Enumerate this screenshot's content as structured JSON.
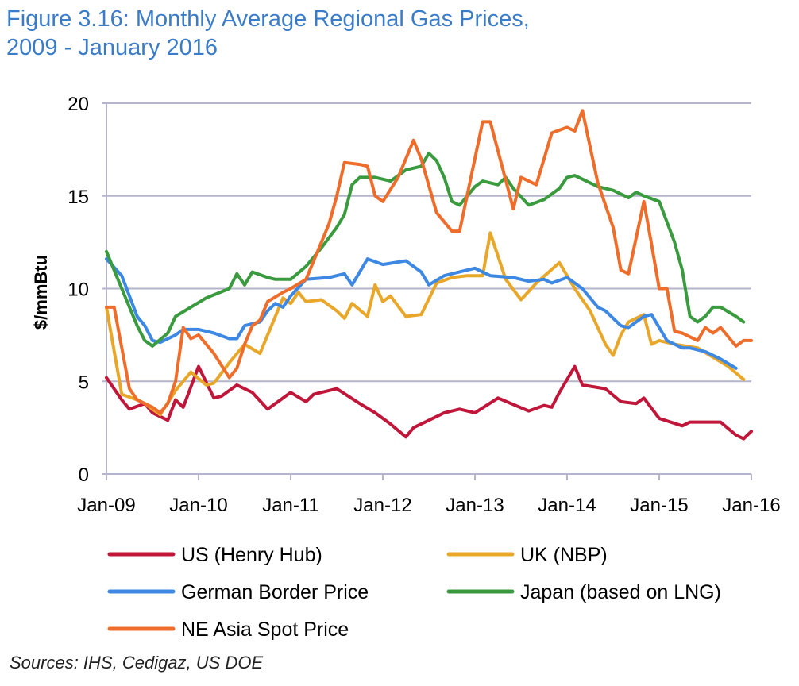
{
  "chart_data": {
    "type": "line",
    "title_line1": "Figure 3.16: Monthly Average Regional Gas Prices,",
    "title_line2": "2009 - January 2016",
    "xlabel": "",
    "ylabel": "$/mmBtu",
    "ylim": [
      0,
      20
    ],
    "yticks": [
      "0",
      "5",
      "10",
      "15",
      "20"
    ],
    "xticks": [
      "Jan-09",
      "Jan-10",
      "Jan-11",
      "Jan-12",
      "Jan-13",
      "Jan-14",
      "Jan-15",
      "Jan-16"
    ],
    "xrange": [
      "2009-01",
      "2016-01"
    ],
    "grid": "horizontal",
    "legend_placement": "bottom",
    "source": "Sources: IHS, Cedigaz, US DOE",
    "series": [
      {
        "name": "US (Henry Hub)",
        "color": "#c0163a",
        "points": [
          [
            "2009-01",
            5.2
          ],
          [
            "2009-03",
            4.0
          ],
          [
            "2009-04",
            3.5
          ],
          [
            "2009-06",
            3.8
          ],
          [
            "2009-07",
            3.3
          ],
          [
            "2009-09",
            2.9
          ],
          [
            "2009-10",
            4.0
          ],
          [
            "2009-11",
            3.6
          ],
          [
            "2010-01",
            5.8
          ],
          [
            "2010-03",
            4.1
          ],
          [
            "2010-04",
            4.2
          ],
          [
            "2010-06",
            4.8
          ],
          [
            "2010-08",
            4.4
          ],
          [
            "2010-10",
            3.5
          ],
          [
            "2010-11",
            3.8
          ],
          [
            "2011-01",
            4.4
          ],
          [
            "2011-03",
            3.9
          ],
          [
            "2011-04",
            4.3
          ],
          [
            "2011-07",
            4.6
          ],
          [
            "2011-10",
            3.8
          ],
          [
            "2011-12",
            3.3
          ],
          [
            "2012-02",
            2.7
          ],
          [
            "2012-04",
            2.0
          ],
          [
            "2012-05",
            2.5
          ],
          [
            "2012-07",
            2.9
          ],
          [
            "2012-09",
            3.3
          ],
          [
            "2012-11",
            3.5
          ],
          [
            "2013-01",
            3.3
          ],
          [
            "2013-04",
            4.1
          ],
          [
            "2013-08",
            3.4
          ],
          [
            "2013-10",
            3.7
          ],
          [
            "2013-11",
            3.6
          ],
          [
            "2013-12",
            4.4
          ],
          [
            "2014-02",
            5.8
          ],
          [
            "2014-03",
            4.8
          ],
          [
            "2014-06",
            4.6
          ],
          [
            "2014-08",
            3.9
          ],
          [
            "2014-10",
            3.8
          ],
          [
            "2014-11",
            4.1
          ],
          [
            "2015-01",
            3.0
          ],
          [
            "2015-04",
            2.6
          ],
          [
            "2015-05",
            2.8
          ],
          [
            "2015-09",
            2.8
          ],
          [
            "2015-11",
            2.1
          ],
          [
            "2015-12",
            1.9
          ],
          [
            "2016-01",
            2.3
          ]
        ]
      },
      {
        "name": "UK (NBP)",
        "color": "#e9a72a",
        "points": [
          [
            "2009-01",
            9.0
          ],
          [
            "2009-03",
            4.3
          ],
          [
            "2009-05",
            4.0
          ],
          [
            "2009-06",
            3.8
          ],
          [
            "2009-08",
            3.2
          ],
          [
            "2009-10",
            4.5
          ],
          [
            "2009-12",
            5.5
          ],
          [
            "2010-02",
            4.8
          ],
          [
            "2010-03",
            4.9
          ],
          [
            "2010-05",
            6.0
          ],
          [
            "2010-07",
            7.0
          ],
          [
            "2010-09",
            6.5
          ],
          [
            "2010-11",
            8.5
          ],
          [
            "2010-12",
            9.5
          ],
          [
            "2011-01",
            9.2
          ],
          [
            "2011-02",
            9.8
          ],
          [
            "2011-03",
            9.3
          ],
          [
            "2011-05",
            9.4
          ],
          [
            "2011-07",
            8.8
          ],
          [
            "2011-08",
            8.4
          ],
          [
            "2011-09",
            9.2
          ],
          [
            "2011-11",
            8.5
          ],
          [
            "2011-12",
            10.2
          ],
          [
            "2012-01",
            9.3
          ],
          [
            "2012-02",
            9.6
          ],
          [
            "2012-04",
            8.5
          ],
          [
            "2012-06",
            8.6
          ],
          [
            "2012-08",
            10.3
          ],
          [
            "2012-10",
            10.6
          ],
          [
            "2012-12",
            10.7
          ],
          [
            "2013-02",
            10.7
          ],
          [
            "2013-03",
            13.0
          ],
          [
            "2013-05",
            10.5
          ],
          [
            "2013-07",
            9.4
          ],
          [
            "2013-09",
            10.3
          ],
          [
            "2013-12",
            11.4
          ],
          [
            "2014-02",
            10.0
          ],
          [
            "2014-04",
            8.8
          ],
          [
            "2014-06",
            7.0
          ],
          [
            "2014-07",
            6.4
          ],
          [
            "2014-08",
            7.5
          ],
          [
            "2014-09",
            8.2
          ],
          [
            "2014-11",
            8.6
          ],
          [
            "2014-12",
            7.0
          ],
          [
            "2015-01",
            7.2
          ],
          [
            "2015-03",
            7.0
          ],
          [
            "2015-06",
            6.8
          ],
          [
            "2015-08",
            6.3
          ],
          [
            "2015-10",
            5.8
          ],
          [
            "2015-12",
            5.1
          ]
        ]
      },
      {
        "name": "German Border Price",
        "color": "#3d88e2",
        "points": [
          [
            "2009-01",
            11.6
          ],
          [
            "2009-03",
            10.7
          ],
          [
            "2009-05",
            8.5
          ],
          [
            "2009-06",
            8.0
          ],
          [
            "2009-07",
            7.2
          ],
          [
            "2009-08",
            7.1
          ],
          [
            "2009-10",
            7.5
          ],
          [
            "2009-11",
            7.8
          ],
          [
            "2010-01",
            7.8
          ],
          [
            "2010-03",
            7.6
          ],
          [
            "2010-05",
            7.3
          ],
          [
            "2010-06",
            7.3
          ],
          [
            "2010-07",
            8.0
          ],
          [
            "2010-09",
            8.2
          ],
          [
            "2010-10",
            8.8
          ],
          [
            "2010-11",
            9.2
          ],
          [
            "2010-12",
            9.0
          ],
          [
            "2011-01",
            9.6
          ],
          [
            "2011-03",
            10.5
          ],
          [
            "2011-06",
            10.6
          ],
          [
            "2011-08",
            10.8
          ],
          [
            "2011-09",
            10.2
          ],
          [
            "2011-11",
            11.6
          ],
          [
            "2012-01",
            11.3
          ],
          [
            "2012-04",
            11.5
          ],
          [
            "2012-06",
            10.9
          ],
          [
            "2012-07",
            10.2
          ],
          [
            "2012-09",
            10.7
          ],
          [
            "2012-12",
            11.0
          ],
          [
            "2013-01",
            11.1
          ],
          [
            "2013-03",
            10.7
          ],
          [
            "2013-06",
            10.6
          ],
          [
            "2013-08",
            10.4
          ],
          [
            "2013-10",
            10.5
          ],
          [
            "2013-11",
            10.3
          ],
          [
            "2014-01",
            10.6
          ],
          [
            "2014-03",
            10.0
          ],
          [
            "2014-05",
            9.0
          ],
          [
            "2014-06",
            8.8
          ],
          [
            "2014-08",
            8.0
          ],
          [
            "2014-09",
            7.9
          ],
          [
            "2014-11",
            8.5
          ],
          [
            "2014-12",
            8.6
          ],
          [
            "2015-02",
            7.2
          ],
          [
            "2015-04",
            6.8
          ],
          [
            "2015-05",
            6.8
          ],
          [
            "2015-07",
            6.6
          ],
          [
            "2015-09",
            6.2
          ],
          [
            "2015-11",
            5.7
          ]
        ]
      },
      {
        "name": "Japan (based on LNG)",
        "color": "#3a9b3e",
        "points": [
          [
            "2009-01",
            12.0
          ],
          [
            "2009-03",
            10.0
          ],
          [
            "2009-05",
            8.0
          ],
          [
            "2009-06",
            7.2
          ],
          [
            "2009-07",
            6.9
          ],
          [
            "2009-09",
            7.6
          ],
          [
            "2009-10",
            8.5
          ],
          [
            "2009-12",
            9.0
          ],
          [
            "2010-02",
            9.5
          ],
          [
            "2010-05",
            10.0
          ],
          [
            "2010-06",
            10.8
          ],
          [
            "2010-07",
            10.2
          ],
          [
            "2010-08",
            10.9
          ],
          [
            "2010-10",
            10.6
          ],
          [
            "2010-11",
            10.5
          ],
          [
            "2011-01",
            10.5
          ],
          [
            "2011-03",
            11.2
          ],
          [
            "2011-05",
            12.2
          ],
          [
            "2011-07",
            13.3
          ],
          [
            "2011-08",
            14.0
          ],
          [
            "2011-09",
            15.6
          ],
          [
            "2011-10",
            16.0
          ],
          [
            "2011-12",
            16.0
          ],
          [
            "2012-02",
            15.8
          ],
          [
            "2012-04",
            16.4
          ],
          [
            "2012-06",
            16.6
          ],
          [
            "2012-07",
            17.3
          ],
          [
            "2012-08",
            16.9
          ],
          [
            "2012-09",
            16.0
          ],
          [
            "2012-10",
            14.7
          ],
          [
            "2012-11",
            14.5
          ],
          [
            "2013-01",
            15.5
          ],
          [
            "2013-02",
            15.8
          ],
          [
            "2013-04",
            15.6
          ],
          [
            "2013-05",
            16.0
          ],
          [
            "2013-06",
            15.4
          ],
          [
            "2013-08",
            14.5
          ],
          [
            "2013-10",
            14.8
          ],
          [
            "2013-12",
            15.4
          ],
          [
            "2014-01",
            16.0
          ],
          [
            "2014-02",
            16.1
          ],
          [
            "2014-03",
            15.9
          ],
          [
            "2014-05",
            15.5
          ],
          [
            "2014-07",
            15.3
          ],
          [
            "2014-09",
            14.9
          ],
          [
            "2014-10",
            15.2
          ],
          [
            "2014-11",
            15.0
          ],
          [
            "2015-01",
            14.7
          ],
          [
            "2015-03",
            12.5
          ],
          [
            "2015-04",
            11.0
          ],
          [
            "2015-05",
            8.5
          ],
          [
            "2015-06",
            8.2
          ],
          [
            "2015-07",
            8.5
          ],
          [
            "2015-08",
            9.0
          ],
          [
            "2015-09",
            9.0
          ],
          [
            "2015-11",
            8.5
          ],
          [
            "2015-12",
            8.2
          ]
        ]
      },
      {
        "name": "NE Asia Spot Price",
        "color": "#ef6d2b",
        "points": [
          [
            "2009-01",
            9.0
          ],
          [
            "2009-02",
            9.0
          ],
          [
            "2009-04",
            4.6
          ],
          [
            "2009-05",
            4.0
          ],
          [
            "2009-07",
            3.6
          ],
          [
            "2009-08",
            3.3
          ],
          [
            "2009-09",
            3.8
          ],
          [
            "2009-10",
            5.0
          ],
          [
            "2009-11",
            7.9
          ],
          [
            "2009-12",
            7.3
          ],
          [
            "2010-01",
            7.5
          ],
          [
            "2010-03",
            6.5
          ],
          [
            "2010-05",
            5.2
          ],
          [
            "2010-06",
            5.7
          ],
          [
            "2010-07",
            7.0
          ],
          [
            "2010-08",
            8.0
          ],
          [
            "2010-09",
            8.3
          ],
          [
            "2010-10",
            9.3
          ],
          [
            "2010-12",
            9.8
          ],
          [
            "2011-01",
            10.0
          ],
          [
            "2011-03",
            10.5
          ],
          [
            "2011-05",
            12.5
          ],
          [
            "2011-06",
            13.5
          ],
          [
            "2011-07",
            15.0
          ],
          [
            "2011-08",
            16.8
          ],
          [
            "2011-10",
            16.7
          ],
          [
            "2011-11",
            16.6
          ],
          [
            "2011-12",
            15.0
          ],
          [
            "2012-01",
            14.7
          ],
          [
            "2012-03",
            16.0
          ],
          [
            "2012-05",
            18.0
          ],
          [
            "2012-06",
            17.0
          ],
          [
            "2012-08",
            14.1
          ],
          [
            "2012-10",
            13.1
          ],
          [
            "2012-11",
            13.1
          ],
          [
            "2013-02",
            19.0
          ],
          [
            "2013-03",
            19.0
          ],
          [
            "2013-06",
            14.3
          ],
          [
            "2013-07",
            16.0
          ],
          [
            "2013-09",
            15.6
          ],
          [
            "2013-11",
            18.4
          ],
          [
            "2014-01",
            18.7
          ],
          [
            "2014-02",
            18.5
          ],
          [
            "2014-03",
            19.6
          ],
          [
            "2014-05",
            15.7
          ],
          [
            "2014-07",
            13.3
          ],
          [
            "2014-08",
            11.0
          ],
          [
            "2014-09",
            10.8
          ],
          [
            "2014-11",
            14.7
          ],
          [
            "2014-12",
            12.4
          ],
          [
            "2015-01",
            10.0
          ],
          [
            "2015-02",
            10.0
          ],
          [
            "2015-03",
            7.7
          ],
          [
            "2015-04",
            7.6
          ],
          [
            "2015-06",
            7.2
          ],
          [
            "2015-07",
            7.9
          ],
          [
            "2015-08",
            7.6
          ],
          [
            "2015-09",
            7.9
          ],
          [
            "2015-11",
            6.9
          ],
          [
            "2015-12",
            7.2
          ],
          [
            "2016-01",
            7.2
          ]
        ]
      }
    ]
  }
}
